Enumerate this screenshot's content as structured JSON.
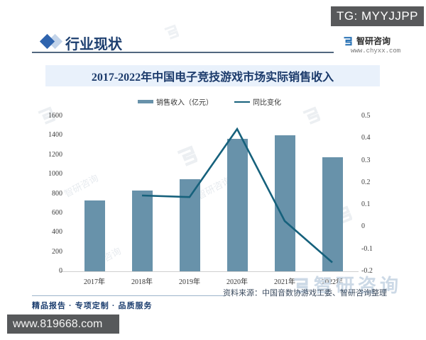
{
  "page": {
    "tg_badge": "TG: MYYJJPP",
    "bottom_badge": "www.819668.com"
  },
  "header": {
    "section_title": "行业现状",
    "background_watermark": "status",
    "brand": {
      "name": "智研咨询",
      "site": "www.chyxx.com"
    }
  },
  "chart": {
    "title": "2017-2022年中国电子竞技游戏市场实际销售收入",
    "colors": {
      "bar": "#6892aa",
      "line": "#16617c",
      "title_band_bg": "#e9f1fb",
      "navy": "#1c3e6f"
    }
  },
  "chart_data": {
    "type": "bar+line",
    "title": "2017-2022年中国电子竞技游戏市场实际销售收入",
    "categories": [
      "2017年",
      "2018年",
      "2019年",
      "2020年",
      "2021年",
      "2022年"
    ],
    "series": [
      {
        "name": "销售收入（亿元）",
        "type": "bar",
        "axis": "left",
        "color": "#6892aa",
        "values": [
          730.5,
          834.4,
          947.3,
          1365.6,
          1401.8,
          1178.0
        ]
      },
      {
        "name": "同比变化",
        "type": "line",
        "axis": "right",
        "color": "#16617c",
        "values": [
          null,
          0.142,
          0.135,
          0.442,
          0.027,
          -0.16
        ]
      }
    ],
    "left_axis": {
      "range": [
        0,
        1600
      ],
      "tick_values": [
        0,
        200,
        400,
        600,
        800,
        1000,
        1200,
        1400,
        1600
      ],
      "tick_labels": [
        "0",
        "200",
        "400",
        "600",
        "800",
        "1000",
        "1200",
        "1400",
        "1600"
      ]
    },
    "right_axis": {
      "range": [
        -0.2,
        0.5
      ],
      "tick_values": [
        -0.2,
        -0.1,
        0,
        0.1,
        0.2,
        0.3,
        0.4,
        0.5
      ],
      "tick_labels": [
        "-0.2",
        "-0.1",
        "0",
        "0.1",
        "0.2",
        "0.3",
        "0.4",
        "0.5"
      ]
    },
    "grid": false,
    "legend_position": "top"
  },
  "footer": {
    "tagline": "精品报告 · 专项定制 · 品质服务",
    "source": "资料来源：中国音数协游戏工委、智研咨询整理"
  },
  "watermark": {
    "brand": "智研咨询"
  }
}
